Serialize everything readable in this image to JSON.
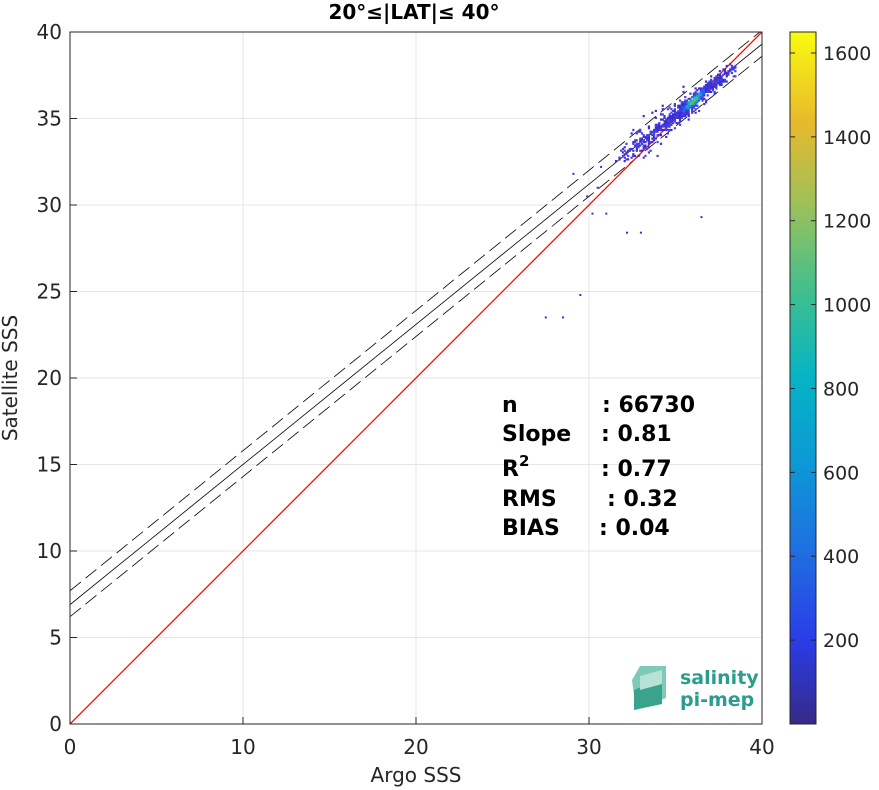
{
  "chart_data": {
    "type": "heatmap",
    "title": "20°≤|LAT|≤ 40°",
    "xlabel": "Argo SSS",
    "ylabel": "Satellite SSS",
    "xlim": [
      0,
      40
    ],
    "ylim": [
      0,
      40
    ],
    "xticks": [
      "0",
      "10",
      "20",
      "30",
      "40"
    ],
    "yticks": [
      "0",
      "5",
      "10",
      "15",
      "20",
      "25",
      "30",
      "35",
      "40"
    ],
    "grid": true,
    "one_to_one_line": {
      "color": "#ff0000",
      "x": [
        0,
        40
      ],
      "y": [
        0,
        40
      ]
    },
    "regression_line": {
      "color": "#000000",
      "slope": 0.81,
      "intercept": 6.9,
      "x_range": [
        0,
        40
      ]
    },
    "confidence_lines": {
      "color": "#000000",
      "style": "dashed",
      "intercepts": [
        7.7,
        6.2
      ],
      "slope": 0.81
    },
    "density_cluster": {
      "x_center": 36.0,
      "y_center": 36.0,
      "x_range": [
        31.5,
        38.5
      ],
      "y_range": [
        32.5,
        38.5
      ]
    },
    "outliers": [
      {
        "x": 27.5,
        "y": 23.5
      },
      {
        "x": 28.5,
        "y": 23.5
      },
      {
        "x": 29.5,
        "y": 24.8
      },
      {
        "x": 32.2,
        "y": 28.4
      },
      {
        "x": 33.0,
        "y": 28.4
      },
      {
        "x": 36.5,
        "y": 29.3
      },
      {
        "x": 30.2,
        "y": 29.5
      },
      {
        "x": 31.0,
        "y": 29.5
      },
      {
        "x": 29.9,
        "y": 30.5
      },
      {
        "x": 30.5,
        "y": 31.0
      },
      {
        "x": 29.1,
        "y": 31.8
      },
      {
        "x": 30.7,
        "y": 32.2
      }
    ],
    "stats": [
      {
        "label": "n",
        "value": ": 66730"
      },
      {
        "label": "Slope",
        "value": ": 0.81"
      },
      {
        "label": "R",
        "sup": "2",
        "value": ": 0.77"
      },
      {
        "label": "RMS",
        "value": ": 0.32"
      },
      {
        "label": "BIAS",
        "value": ": 0.04"
      }
    ],
    "colorbar": {
      "colormap": "parula",
      "range": [
        0,
        1650
      ],
      "tick_labels": [
        "200",
        "400",
        "600",
        "800",
        "1000",
        "1200",
        "1400",
        "1600"
      ],
      "tick_values": [
        200,
        400,
        600,
        800,
        1000,
        1200,
        1400,
        1600
      ]
    }
  },
  "logo": {
    "line1": "salinity",
    "line2": "pi-mep"
  }
}
